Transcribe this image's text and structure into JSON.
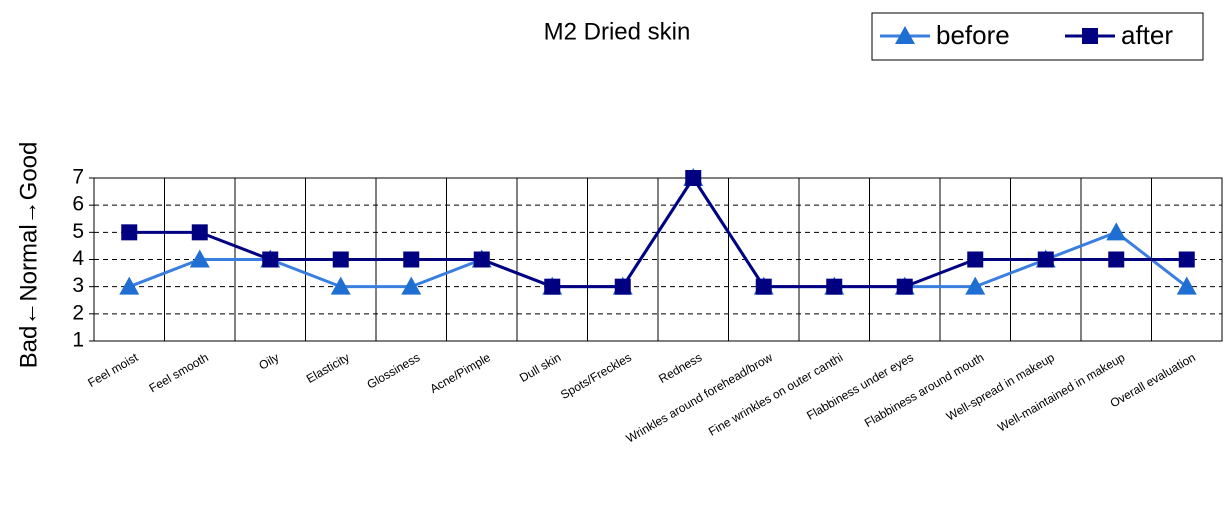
{
  "chart_data": {
    "type": "line",
    "title": "M2 Dried skin",
    "y_label": "Bad←Normal→Good",
    "categories": [
      "Feel moist",
      "Feel smooth",
      "Oily",
      "Elasticity",
      "Glossiness",
      "Acne/Pimple",
      "Dull skin",
      "Spots/Freckles",
      "Redness",
      "Wrinkles around forehead/brow",
      "Fine wrinkles on outer canthi",
      "Flabbiness under eyes",
      "Flabbiness around mouth",
      "Well-spread in makeup",
      "Well-maintained in makeup",
      "Overall evaluation"
    ],
    "series": [
      {
        "name": "before",
        "color": "#3a7ee0",
        "marker_color": "#1f6fd3",
        "marker": "triangle",
        "values": [
          3,
          4,
          4,
          3,
          3,
          4,
          3,
          3,
          7,
          3,
          3,
          3,
          3,
          4,
          5,
          3
        ]
      },
      {
        "name": "after",
        "color": "#000080",
        "marker_color": "#000080",
        "marker": "square",
        "values": [
          5,
          5,
          4,
          4,
          4,
          4,
          3,
          3,
          7,
          3,
          3,
          3,
          4,
          4,
          4,
          4
        ]
      }
    ],
    "ylim": [
      1,
      7
    ],
    "yticks": [
      1,
      2,
      3,
      4,
      5,
      6,
      7
    ],
    "grid": true,
    "legend": "top-right"
  }
}
